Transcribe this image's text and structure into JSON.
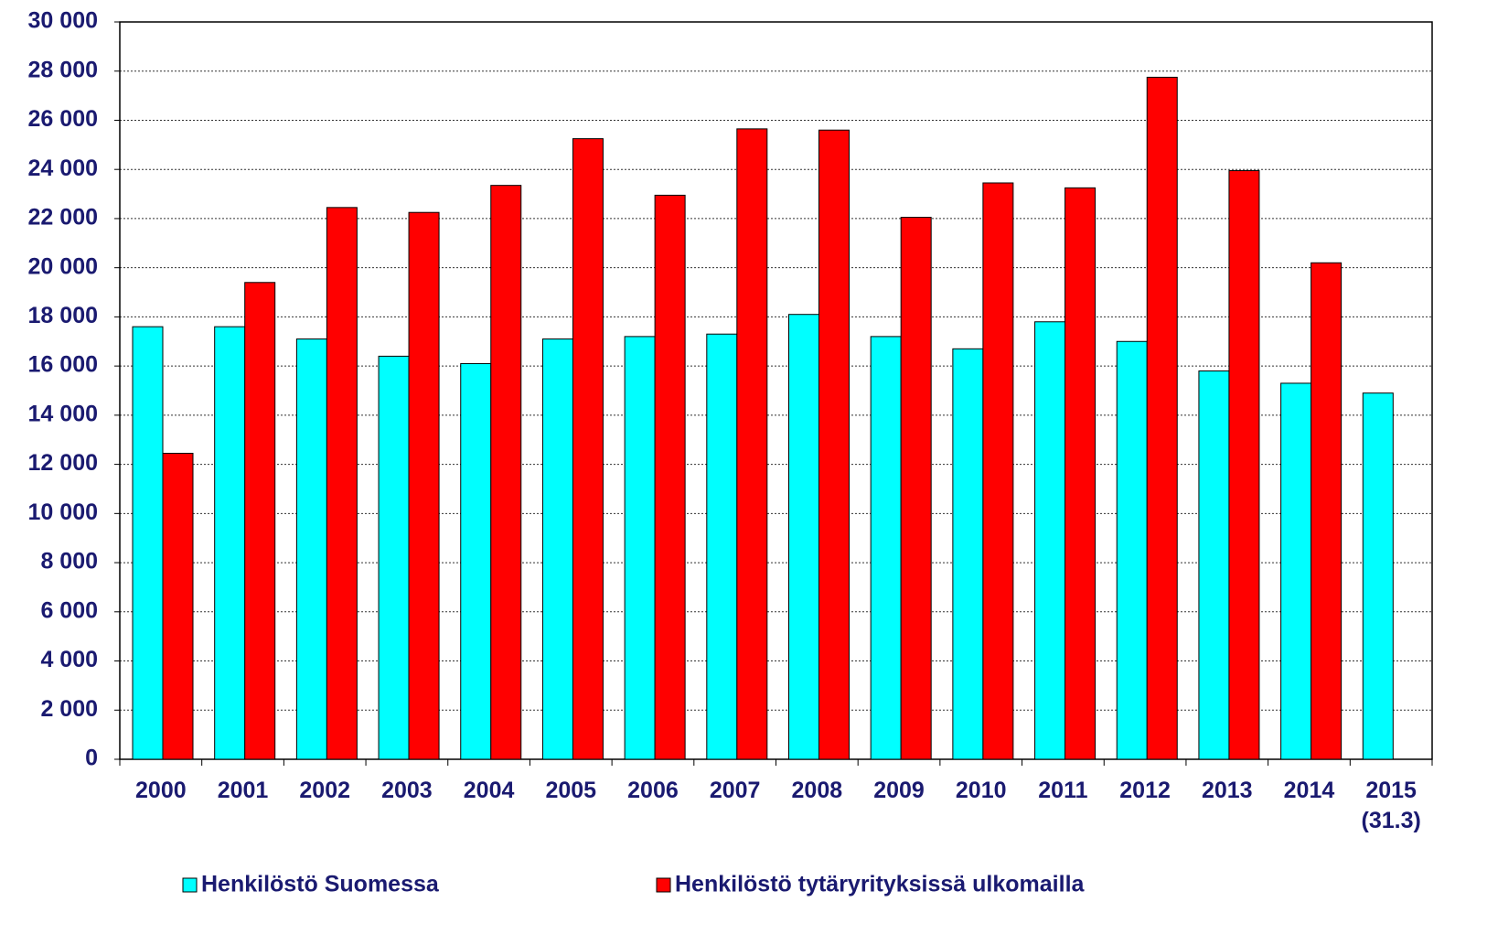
{
  "chart_data": {
    "type": "bar",
    "categories": [
      "2000",
      "2001",
      "2002",
      "2003",
      "2004",
      "2005",
      "2006",
      "2007",
      "2008",
      "2009",
      "2010",
      "2011",
      "2012",
      "2013",
      "2014",
      "2015 (31.3)"
    ],
    "series": [
      {
        "name": "Henkilöstö Suomessa",
        "color": "#00ffff",
        "values": [
          17600,
          17600,
          17100,
          16400,
          16100,
          17100,
          17200,
          17300,
          18100,
          17200,
          16700,
          17800,
          17000,
          15800,
          15300,
          14900
        ]
      },
      {
        "name": "Henkilöstö tytäryrityksissä ulkomailla",
        "color": "#ff0000",
        "values": [
          12450,
          19400,
          22450,
          22250,
          23350,
          25250,
          22950,
          25650,
          25600,
          22050,
          23450,
          23250,
          27750,
          23950,
          20200,
          null
        ]
      }
    ],
    "ylim": [
      0,
      30000
    ],
    "yticks": [
      0,
      {
        "value": 2000,
        "label": "2 000"
      },
      {
        "value": 4000,
        "label": "4 000"
      },
      {
        "value": 6000,
        "label": "6 000"
      },
      {
        "value": 8000,
        "label": "8 000"
      },
      {
        "value": 10000,
        "label": "10 000"
      },
      {
        "value": 12000,
        "label": "12 000"
      },
      {
        "value": 14000,
        "label": "14 000"
      },
      {
        "value": 16000,
        "label": "16 000"
      },
      {
        "value": 18000,
        "label": "18 000"
      },
      {
        "value": 20000,
        "label": "20 000"
      },
      {
        "value": 22000,
        "label": "22 000"
      },
      {
        "value": 24000,
        "label": "24 000"
      },
      {
        "value": 26000,
        "label": "26 000"
      },
      {
        "value": 28000,
        "label": "28 000"
      },
      {
        "value": 30000,
        "label": "30 000"
      }
    ],
    "grid": true,
    "legend": "bottom"
  }
}
